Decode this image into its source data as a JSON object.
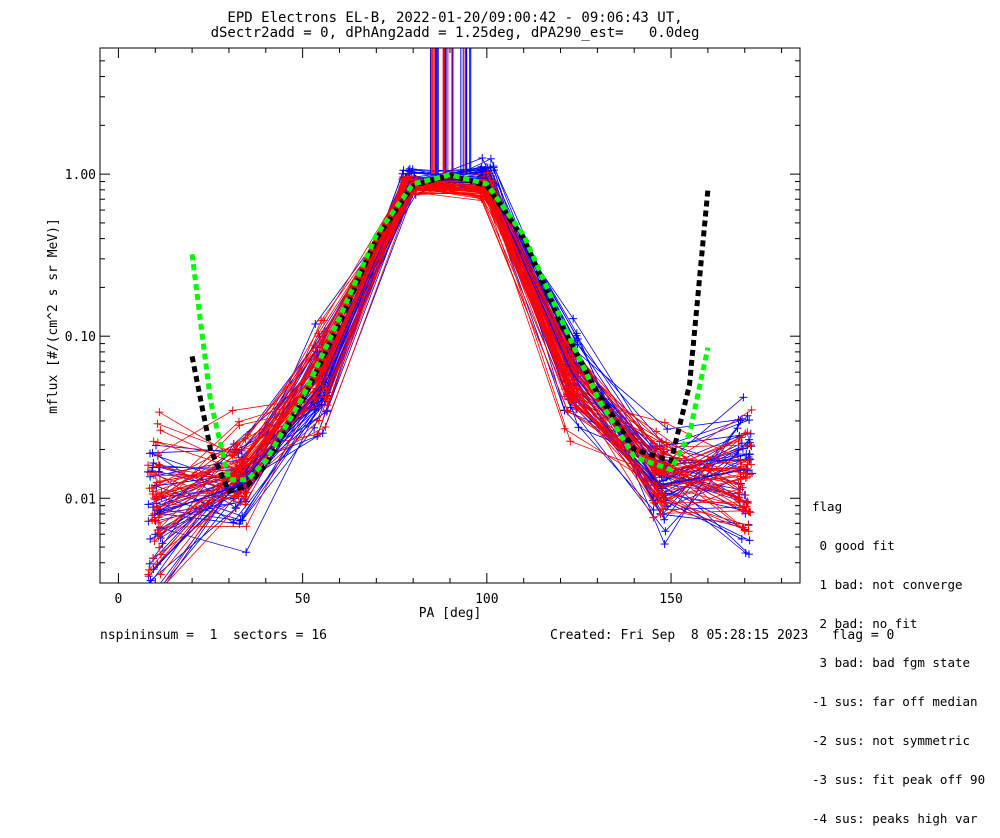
{
  "chart_data": {
    "type": "line",
    "title": "EPD Electrons EL-B, 2022-01-20/09:00:42 - 09:06:43 UT,",
    "subtitle": "dSectr2add = 0, dPhAng2add = 1.25deg, dPA290_est=   0.0deg",
    "xlabel": "PA [deg]",
    "ylabel": "mflux [#/(cm^2 s sr MeV)]",
    "xlim": [
      -5,
      185
    ],
    "ylim": [
      0.003,
      6.0
    ],
    "yscale": "log",
    "x_ticks": [
      0,
      50,
      100,
      150
    ],
    "x_tick_labels": [
      "0",
      "50",
      "100",
      "150"
    ],
    "y_ticks": [
      0.01,
      0.1,
      1.0
    ],
    "y_tick_labels": [
      "0.01",
      "0.10",
      "1.00"
    ],
    "grid": false,
    "series": [
      {
        "color": "#0000ff",
        "style": "thin-with-plus-markers",
        "x": [
          10,
          33,
          55,
          79,
          100,
          123,
          147,
          170
        ],
        "y": [
          0.008,
          0.012,
          0.05,
          0.9,
          0.95,
          0.06,
          0.012,
          0.015
        ]
      },
      {
        "color": "#ff0000",
        "style": "thin-with-plus-markers",
        "x": [
          10,
          33,
          55,
          79,
          100,
          123,
          147,
          170
        ],
        "y": [
          0.01,
          0.014,
          0.06,
          0.85,
          0.8,
          0.05,
          0.015,
          0.012
        ]
      },
      {
        "color": "#000000",
        "style": "thick-dashed",
        "x": [
          20,
          25,
          30,
          35,
          40,
          50,
          60,
          70,
          80,
          90,
          100,
          110,
          120,
          130,
          140,
          150,
          155,
          160
        ],
        "y": [
          0.075,
          0.02,
          0.011,
          0.012,
          0.016,
          0.04,
          0.12,
          0.4,
          0.85,
          0.98,
          0.85,
          0.4,
          0.12,
          0.045,
          0.02,
          0.017,
          0.05,
          0.8
        ]
      },
      {
        "color": "#00ff00",
        "style": "thick-dashed",
        "x": [
          20,
          25,
          30,
          35,
          40,
          50,
          60,
          70,
          80,
          90,
          100,
          110,
          120,
          130,
          140,
          150,
          155,
          160
        ],
        "y": [
          0.32,
          0.04,
          0.013,
          0.013,
          0.017,
          0.042,
          0.13,
          0.42,
          0.87,
          0.99,
          0.87,
          0.42,
          0.13,
          0.042,
          0.018,
          0.015,
          0.025,
          0.085
        ]
      }
    ]
  },
  "legend": {
    "header": "flag",
    "items": [
      " 0 good fit",
      " 1 bad: not converge",
      " 2 bad: no fit",
      " 3 bad: bad fgm state",
      "-1 sus: far off median",
      "-2 sus: not symmetric",
      "-3 sus: fit peak off 90",
      "-4 sus: peaks high var"
    ]
  },
  "footer": {
    "left": "nspininsum =  1  sectors = 16",
    "right": "Created: Fri Sep  8 05:28:15 2023   flag = 0"
  }
}
